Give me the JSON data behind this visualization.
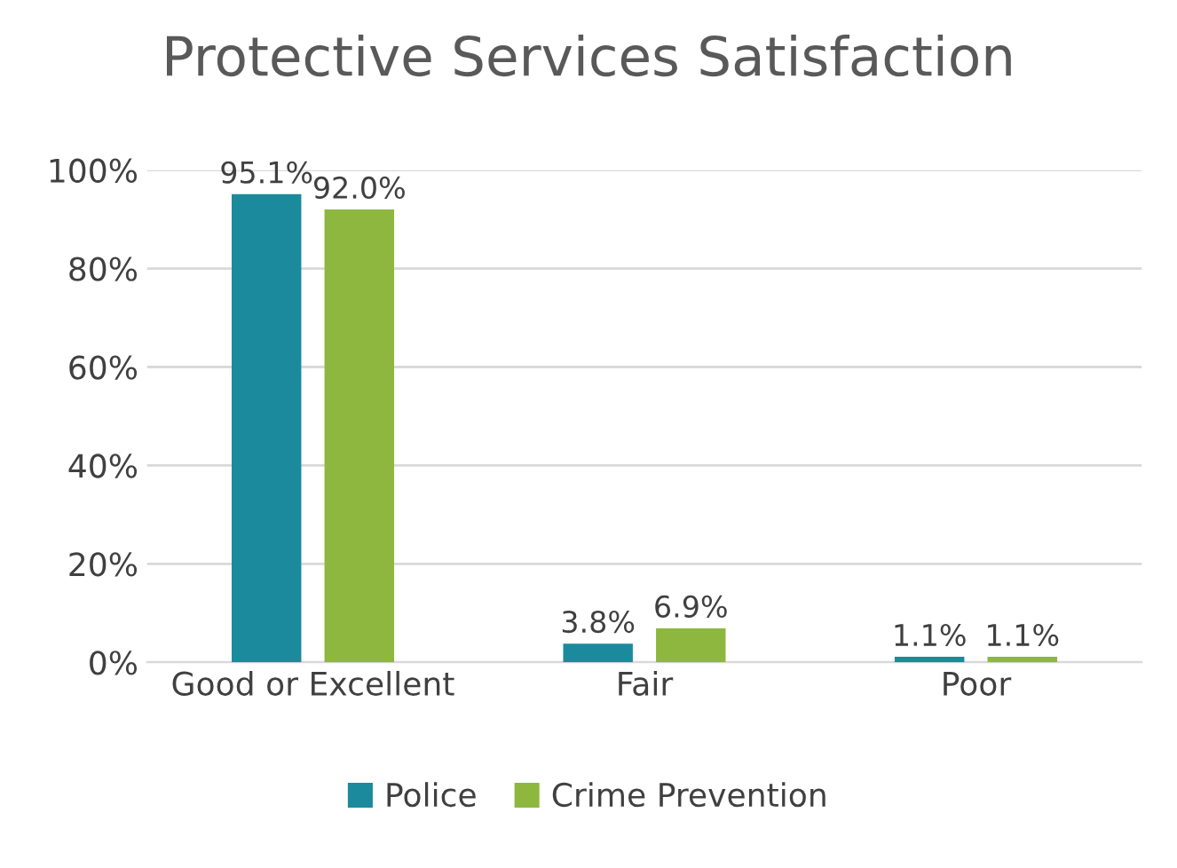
{
  "chart_data": {
    "type": "bar",
    "title": "Protective Services Satisfaction",
    "categories": [
      "Good or Excellent",
      "Fair",
      "Poor"
    ],
    "series": [
      {
        "name": "Police",
        "color": "#1b8a9c",
        "values": [
          95.1,
          3.8,
          1.1
        ],
        "value_labels": [
          "95.1%",
          "3.8%",
          "1.1%"
        ]
      },
      {
        "name": "Crime Prevention",
        "color": "#8db73f",
        "values": [
          92.0,
          6.9,
          1.1
        ],
        "value_labels": [
          "92.0%",
          "6.9%",
          "1.1%"
        ]
      }
    ],
    "ylim": [
      0,
      100
    ],
    "yticks": [
      {
        "value": 0,
        "label": "0%"
      },
      {
        "value": 20,
        "label": "20%"
      },
      {
        "value": 40,
        "label": "40%"
      },
      {
        "value": 60,
        "label": "60%"
      },
      {
        "value": 80,
        "label": "80%"
      },
      {
        "value": 100,
        "label": "100%"
      }
    ],
    "grid": "y",
    "legend": "bottom"
  }
}
